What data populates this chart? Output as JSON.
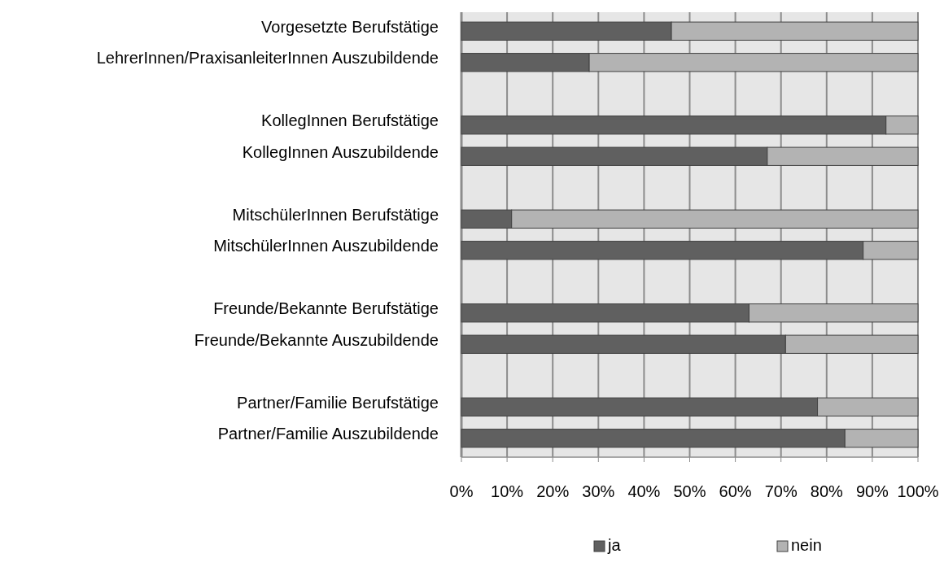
{
  "chart_data": {
    "type": "bar",
    "orientation": "horizontal",
    "stacked": true,
    "categories": [
      "Vorgesetzte Berufstätige",
      "LehrerInnen/PraxisanleiterInnen Auszubildende",
      null,
      "KollegInnen Berufstätige",
      "KollegInnen Auszubildende",
      null,
      "MitschülerInnen Berufstätige",
      "MitschülerInnen Auszubildende",
      null,
      "Freunde/Bekannte Berufstätige",
      "Freunde/Bekannte Auszubildende",
      null,
      "Partner/Familie Berufstätige",
      "Partner/Familie Auszubildende"
    ],
    "series": [
      {
        "name": "ja",
        "color": "#606060",
        "values": [
          46,
          28,
          null,
          93,
          67,
          null,
          11,
          88,
          null,
          63,
          71,
          null,
          78,
          84
        ]
      },
      {
        "name": "nein",
        "color": "#b3b3b3",
        "values": [
          54,
          72,
          null,
          7,
          33,
          null,
          89,
          12,
          null,
          37,
          29,
          null,
          22,
          16
        ]
      }
    ],
    "xlim": [
      0,
      100
    ],
    "xticks": [
      {
        "value": 0,
        "label": "0%"
      },
      {
        "value": 10,
        "label": "10%"
      },
      {
        "value": 20,
        "label": "20%"
      },
      {
        "value": 30,
        "label": "30%"
      },
      {
        "value": 40,
        "label": "40%"
      },
      {
        "value": 50,
        "label": "50%"
      },
      {
        "value": 60,
        "label": "60%"
      },
      {
        "value": 70,
        "label": "70%"
      },
      {
        "value": 80,
        "label": "80%"
      },
      {
        "value": 90,
        "label": "90%"
      },
      {
        "value": 100,
        "label": "100%"
      }
    ],
    "grid": "x",
    "legend": "bottom"
  }
}
